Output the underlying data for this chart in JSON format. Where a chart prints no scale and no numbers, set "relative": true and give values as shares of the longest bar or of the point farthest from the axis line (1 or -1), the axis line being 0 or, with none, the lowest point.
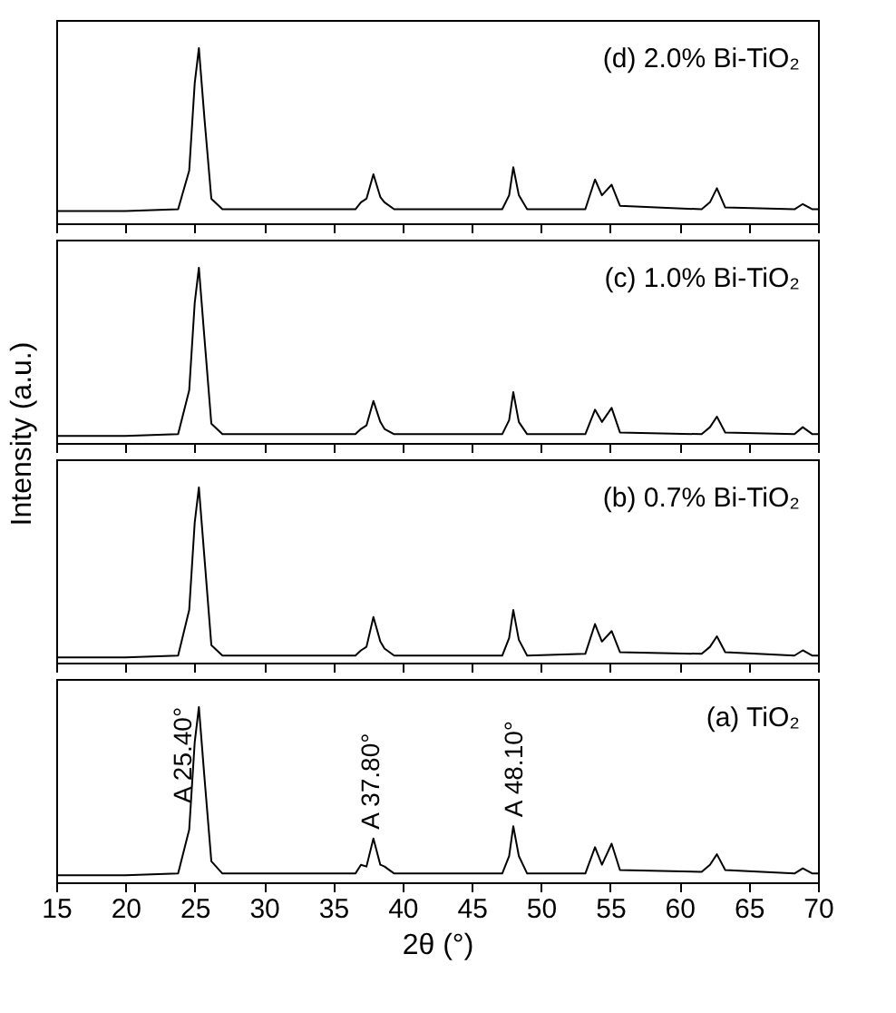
{
  "chart_data": [
    {
      "type": "line",
      "relative": true,
      "tick_labels": false,
      "ylabel": "Intensity (a.u.)",
      "xlim": [
        15,
        70
      ],
      "xticks": [
        15,
        20,
        25,
        30,
        35,
        40,
        45,
        50,
        55,
        60,
        65,
        70
      ],
      "annotations": [
        "(d) 2.0% Bi-TiO₂"
      ],
      "x": [
        15,
        20,
        23.8,
        24.6,
        25.0,
        25.3,
        25.7,
        26.2,
        27,
        36.6,
        37.0,
        37.4,
        37.9,
        38.4,
        38.7,
        39.4,
        47.2,
        47.7,
        48.0,
        48.4,
        49.0,
        53.2,
        53.9,
        54.4,
        55.1,
        55.7,
        61.6,
        62.2,
        62.7,
        63.3,
        68.3,
        68.9,
        69.6,
        70
      ],
      "series": [
        {
          "color": "#000000",
          "values": [
            0.07,
            0.07,
            0.08,
            0.3,
            0.8,
            1,
            0.6,
            0.14,
            0.08,
            0.08,
            0.12,
            0.14,
            0.28,
            0.15,
            0.12,
            0.08,
            0.08,
            0.16,
            0.32,
            0.16,
            0.08,
            0.08,
            0.25,
            0.16,
            0.22,
            0.1,
            0.08,
            0.12,
            0.2,
            0.09,
            0.08,
            0.11,
            0.08,
            0.08
          ]
        }
      ]
    },
    {
      "type": "line",
      "relative": true,
      "tick_labels": false,
      "xlim": [
        15,
        70
      ],
      "xticks": [
        15,
        20,
        25,
        30,
        35,
        40,
        45,
        50,
        55,
        60,
        65,
        70
      ],
      "annotations": [
        "(c) 1.0% Bi-TiO₂"
      ],
      "x": [
        15,
        20,
        23.8,
        24.6,
        25.0,
        25.3,
        25.7,
        26.2,
        27,
        36.6,
        37.0,
        37.4,
        37.9,
        38.4,
        38.7,
        39.4,
        47.2,
        47.7,
        48.0,
        48.4,
        49.0,
        53.2,
        53.9,
        54.4,
        55.1,
        55.7,
        61.6,
        62.2,
        62.7,
        63.3,
        68.3,
        68.9,
        69.6,
        70
      ],
      "series": [
        {
          "color": "#000000",
          "values": [
            0.04,
            0.04,
            0.05,
            0.3,
            0.8,
            1,
            0.6,
            0.11,
            0.05,
            0.05,
            0.08,
            0.1,
            0.24,
            0.12,
            0.08,
            0.05,
            0.05,
            0.13,
            0.29,
            0.12,
            0.05,
            0.05,
            0.19,
            0.12,
            0.2,
            0.06,
            0.05,
            0.09,
            0.15,
            0.06,
            0.05,
            0.09,
            0.05,
            0.05
          ]
        }
      ]
    },
    {
      "type": "line",
      "relative": true,
      "tick_labels": false,
      "xlim": [
        15,
        70
      ],
      "xticks": [
        15,
        20,
        25,
        30,
        35,
        40,
        45,
        50,
        55,
        60,
        65,
        70
      ],
      "annotations": [
        "(b) 0.7% Bi-TiO₂"
      ],
      "x": [
        15,
        20,
        23.8,
        24.6,
        25.0,
        25.3,
        25.7,
        26.2,
        27,
        36.6,
        37.0,
        37.4,
        37.9,
        38.4,
        38.7,
        39.4,
        47.2,
        47.7,
        48.0,
        48.4,
        49.0,
        53.2,
        53.9,
        54.4,
        55.1,
        55.7,
        61.6,
        62.2,
        62.7,
        63.3,
        68.3,
        68.9,
        69.6,
        70
      ],
      "series": [
        {
          "color": "#000000",
          "values": [
            0.03,
            0.03,
            0.04,
            0.3,
            0.8,
            1,
            0.6,
            0.1,
            0.04,
            0.04,
            0.07,
            0.09,
            0.26,
            0.12,
            0.08,
            0.04,
            0.04,
            0.14,
            0.3,
            0.13,
            0.04,
            0.05,
            0.22,
            0.12,
            0.18,
            0.06,
            0.05,
            0.09,
            0.15,
            0.06,
            0.04,
            0.07,
            0.04,
            0.04
          ]
        }
      ]
    },
    {
      "type": "line",
      "relative": true,
      "tick_labels": "x",
      "xlabel": "2θ (°)",
      "xlim": [
        15,
        70
      ],
      "xticks": [
        15,
        20,
        25,
        30,
        35,
        40,
        45,
        50,
        55,
        60,
        65,
        70
      ],
      "annotations": [
        "(a) TiO₂",
        {
          "text": "A 25.40°",
          "x": 25.4,
          "y": 1
        },
        {
          "text": "A 37.80°",
          "x": 37.8,
          "y": 0.25
        },
        {
          "text": "A 48.10°",
          "x": 48.1,
          "y": 0.32
        }
      ],
      "x": [
        15,
        20,
        23.8,
        24.6,
        25.0,
        25.3,
        25.7,
        26.2,
        27,
        36.6,
        37.0,
        37.4,
        37.9,
        38.4,
        38.7,
        39.4,
        47.2,
        47.7,
        48.0,
        48.4,
        49.0,
        53.2,
        53.9,
        54.4,
        55.1,
        55.7,
        61.6,
        62.2,
        62.7,
        63.3,
        68.3,
        68.9,
        69.6,
        70
      ],
      "series": [
        {
          "color": "#000000",
          "values": [
            0.04,
            0.04,
            0.05,
            0.3,
            0.8,
            1,
            0.6,
            0.12,
            0.05,
            0.05,
            0.1,
            0.09,
            0.25,
            0.1,
            0.09,
            0.05,
            0.05,
            0.15,
            0.32,
            0.15,
            0.05,
            0.05,
            0.2,
            0.1,
            0.22,
            0.07,
            0.06,
            0.1,
            0.16,
            0.07,
            0.05,
            0.08,
            0.05,
            0.05
          ]
        }
      ]
    }
  ]
}
